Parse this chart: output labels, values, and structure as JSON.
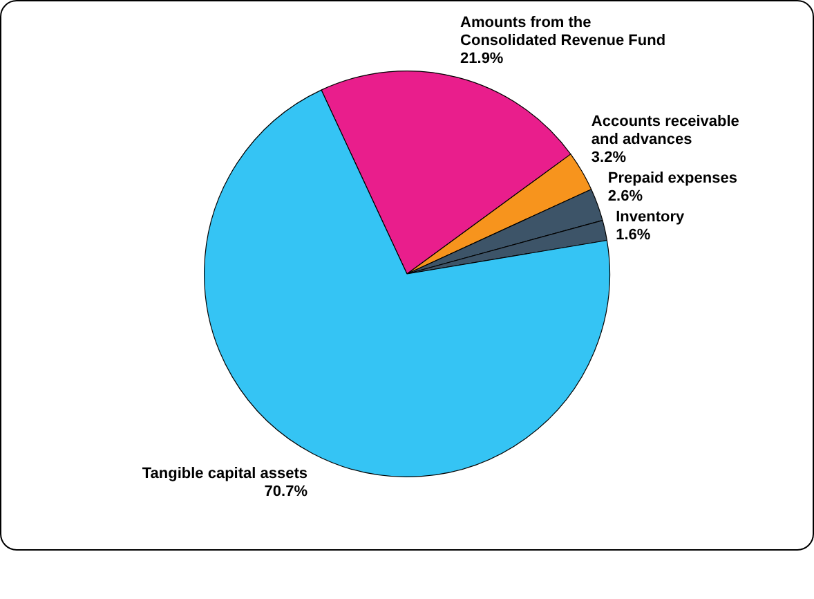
{
  "chart_data": {
    "type": "pie",
    "categories": [
      "Amounts from the\nConsolidated Revenue Fund",
      "Accounts receivable\nand advances",
      "Prepaid expenses",
      "Inventory",
      "Tangible capital assets"
    ],
    "values": [
      21.9,
      3.2,
      2.6,
      1.6,
      70.7
    ],
    "colors": [
      "#e91e8c",
      "#f7941d",
      "#3d5468",
      "#3d5468",
      "#35c4f4"
    ],
    "value_labels": [
      "21.9%",
      "3.2%",
      "2.6%",
      "1.6%",
      "70.7%"
    ],
    "legend": false
  }
}
